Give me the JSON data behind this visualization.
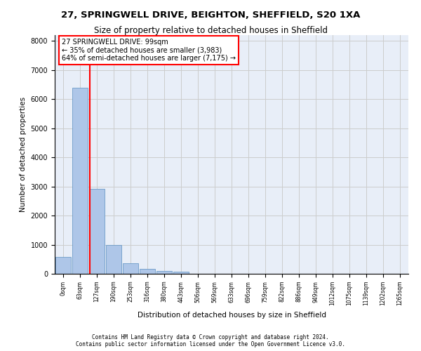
{
  "title_line1": "27, SPRINGWELL DRIVE, BEIGHTON, SHEFFIELD, S20 1XA",
  "title_line2": "Size of property relative to detached houses in Sheffield",
  "xlabel": "Distribution of detached houses by size in Sheffield",
  "ylabel": "Number of detached properties",
  "bar_values": [
    570,
    6400,
    2920,
    980,
    360,
    160,
    95,
    80,
    0,
    0,
    0,
    0,
    0,
    0,
    0,
    0,
    0,
    0,
    0,
    0,
    0
  ],
  "bar_labels": [
    "0sqm",
    "63sqm",
    "127sqm",
    "190sqm",
    "253sqm",
    "316sqm",
    "380sqm",
    "443sqm",
    "506sqm",
    "569sqm",
    "633sqm",
    "696sqm",
    "759sqm",
    "822sqm",
    "886sqm",
    "949sqm",
    "1012sqm",
    "1075sqm",
    "1139sqm",
    "1202sqm",
    "1265sqm"
  ],
  "bar_color": "#aec6e8",
  "bar_edge_color": "#5a8fc0",
  "grid_color": "#cccccc",
  "background_color": "#e8eef8",
  "vline_x": 1.58,
  "vline_color": "red",
  "annotation_text": "27 SPRINGWELL DRIVE: 99sqm\n← 35% of detached houses are smaller (3,983)\n64% of semi-detached houses are larger (7,175) →",
  "annotation_box_color": "white",
  "annotation_box_edgecolor": "red",
  "ylim": [
    0,
    8200
  ],
  "yticks": [
    0,
    1000,
    2000,
    3000,
    4000,
    5000,
    6000,
    7000,
    8000
  ],
  "footer_line1": "Contains HM Land Registry data © Crown copyright and database right 2024.",
  "footer_line2": "Contains public sector information licensed under the Open Government Licence v3.0."
}
